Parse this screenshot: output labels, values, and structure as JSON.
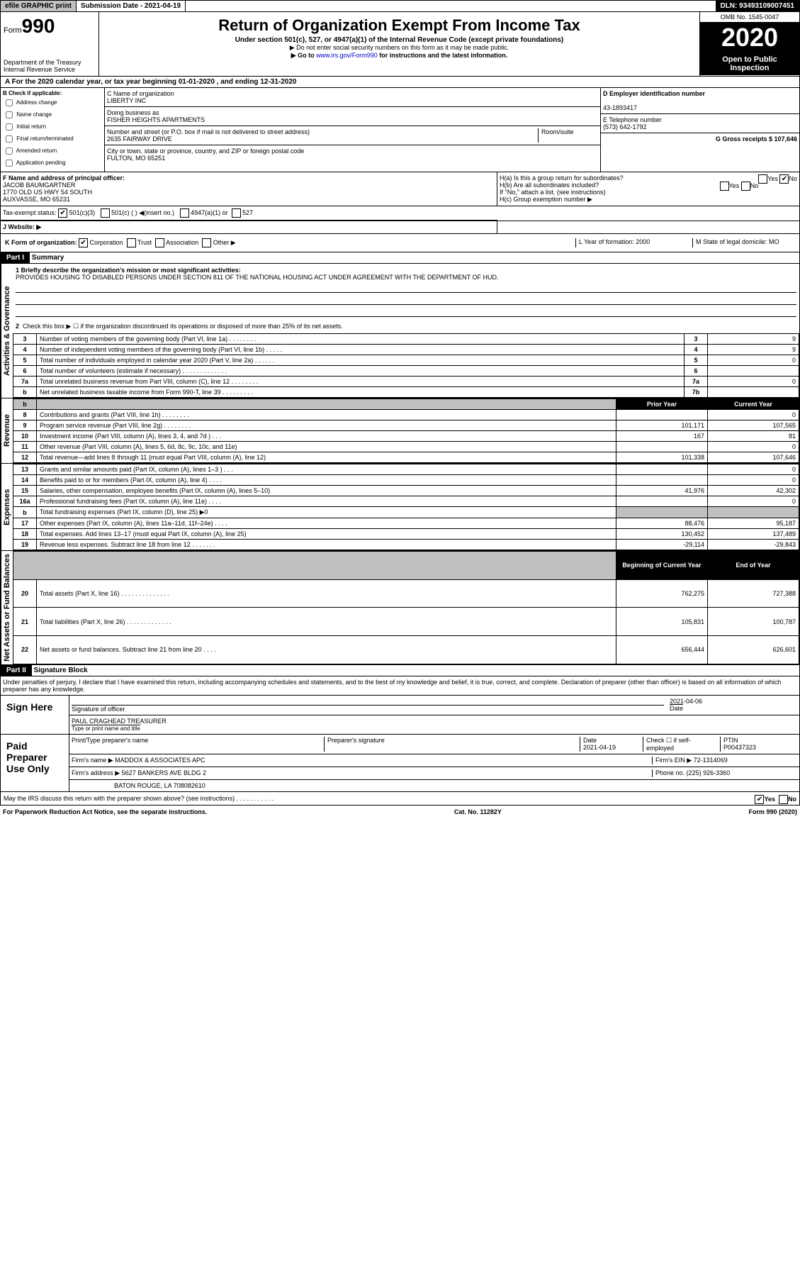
{
  "header": {
    "efile": "efile GRAPHIC print",
    "submission_label": "Submission Date - 2021-04-19",
    "dln": "DLN: 93493109007451"
  },
  "title_block": {
    "form_prefix": "Form",
    "form_number": "990",
    "dept1": "Department of the Treasury",
    "dept2": "Internal Revenue Service",
    "title": "Return of Organization Exempt From Income Tax",
    "subtitle": "Under section 501(c), 527, or 4947(a)(1) of the Internal Revenue Code (except private foundations)",
    "note1": "▶ Do not enter social security numbers on this form as it may be made public.",
    "note2_pre": "▶ Go to ",
    "note2_link": "www.irs.gov/Form990",
    "note2_post": " for instructions and the latest information.",
    "omb": "OMB No. 1545-0047",
    "year": "2020",
    "open": "Open to Public Inspection"
  },
  "period": "A For the 2020 calendar year, or tax year beginning 01-01-2020    , and ending 12-31-2020",
  "boxB": {
    "label": "B Check if applicable:",
    "addr": "Address change",
    "name": "Name change",
    "init": "Initial return",
    "final": "Final return/terminated",
    "amend": "Amended return",
    "app": "Application pending"
  },
  "boxC": {
    "name_label": "C Name of organization",
    "name": "LIBERTY INC",
    "dba_label": "Doing business as",
    "dba": "FISHER HEIGHTS APARTMENTS",
    "addr_label": "Number and street (or P.O. box if mail is not delivered to street address)",
    "room_label": "Room/suite",
    "addr": "2635 FAIRWAY DRIVE",
    "city_label": "City or town, state or province, country, and ZIP or foreign postal code",
    "city": "FULTON, MO  65251"
  },
  "boxD": {
    "ein_label": "D Employer identification number",
    "ein": "43-1893417",
    "phone_label": "E Telephone number",
    "phone": "(573) 642-1792",
    "gross_label": "G Gross receipts $ 107,646"
  },
  "boxF": {
    "label": "F  Name and address of principal officer:",
    "name": "JACOB BAUMGARTNER",
    "addr1": "1770 OLD US HWY 54 SOUTH",
    "addr2": "AUXVASSE, MO  65231"
  },
  "boxH": {
    "ha": "H(a)  Is this a group return for subordinates?",
    "hb": "H(b)  Are all subordinates included?",
    "yes": "Yes",
    "no": "No",
    "note": "If \"No,\" attach a list. (see instructions)",
    "hc": "H(c)  Group exemption number ▶"
  },
  "tax_exempt": {
    "label": "Tax-exempt status:",
    "c3": "501(c)(3)",
    "c": "501(c) (  ) ◀(insert no.)",
    "a1": "4947(a)(1) or",
    "s527": "527"
  },
  "website": "J    Website: ▶",
  "boxK": {
    "label": "K Form of organization:",
    "corp": "Corporation",
    "trust": "Trust",
    "assoc": "Association",
    "other": "Other ▶"
  },
  "boxL": "L Year of formation: 2000",
  "boxM": "M State of legal domicile: MO",
  "part1": {
    "hdr": "Part I",
    "title": "Summary",
    "q1": "1  Briefly describe the organization's mission or most significant activities:",
    "mission": "PROVIDES HOUSING TO DISABLED PERSONS UNDER SECTION 811 OF THE NATIONAL HOUSING ACT UNDER AGREEMENT WITH THE DEPARTMENT OF HUD.",
    "q2": "Check this box ▶ ☐  if the organization discontinued its operations or disposed of more than 25% of its net assets.",
    "side_gov": "Activities & Governance",
    "side_rev": "Revenue",
    "side_exp": "Expenses",
    "side_net": "Net Assets or Fund Balances"
  },
  "governance": {
    "rows": [
      {
        "n": "3",
        "t": "Number of voting members of the governing body (Part VI, line 1a)   .    .    .    .    .    .    .    .",
        "bn": "3",
        "v": "9"
      },
      {
        "n": "4",
        "t": "Number of independent voting members of the governing body (Part VI, line 1b)   .    .    .    .    .",
        "bn": "4",
        "v": "9"
      },
      {
        "n": "5",
        "t": "Total number of individuals employed in calendar year 2020 (Part V, line 2a)   .    .    .    .    .    .",
        "bn": "5",
        "v": "0"
      },
      {
        "n": "6",
        "t": "Total number of volunteers (estimate if necessary)    .    .    .    .    .    .    .    .    .    .    .    .    .",
        "bn": "6",
        "v": ""
      },
      {
        "n": "7a",
        "t": "Total unrelated business revenue from Part VIII, column (C), line 12   .    .    .    .    .    .    .    .",
        "bn": "7a",
        "v": "0"
      },
      {
        "n": "b",
        "t": "Net unrelated business taxable income from Form 990-T, line 39   .    .    .    .    .    .    .    .    .",
        "bn": "7b",
        "v": ""
      }
    ]
  },
  "fin_hdr": {
    "prior": "Prior Year",
    "current": "Current Year"
  },
  "revenue": [
    {
      "n": "8",
      "t": "Contributions and grants (Part VIII, line 1h)   .    .    .    .    .    .    .    .",
      "p": "",
      "c": "0"
    },
    {
      "n": "9",
      "t": "Program service revenue (Part VIII, line 2g)    .    .    .    .    .    .    .    .",
      "p": "101,171",
      "c": "107,565"
    },
    {
      "n": "10",
      "t": "Investment income (Part VIII, column (A), lines 3, 4, and 7d )   .    .    .",
      "p": "167",
      "c": "81"
    },
    {
      "n": "11",
      "t": "Other revenue (Part VIII, column (A), lines 5, 6d, 8c, 9c, 10c, and 11e)",
      "p": "",
      "c": "0"
    },
    {
      "n": "12",
      "t": "Total revenue—add lines 8 through 11 (must equal Part VIII, column (A), line 12)",
      "p": "101,338",
      "c": "107,646"
    }
  ],
  "expenses": [
    {
      "n": "13",
      "t": "Grants and similar amounts paid (Part IX, column (A), lines 1–3 )   .    .    .",
      "p": "",
      "c": "0"
    },
    {
      "n": "14",
      "t": "Benefits paid to or for members (Part IX, column (A), line 4)   .    .    .    .",
      "p": "",
      "c": "0"
    },
    {
      "n": "15",
      "t": "Salaries, other compensation, employee benefits (Part IX, column (A), lines 5–10)",
      "p": "41,976",
      "c": "42,302"
    },
    {
      "n": "16a",
      "t": "Professional fundraising fees (Part IX, column (A), line 11e)   .    .    .    .",
      "p": "",
      "c": "0"
    },
    {
      "n": "b",
      "t": "Total fundraising expenses (Part IX, column (D), line 25) ▶0",
      "p": "grey",
      "c": "grey"
    },
    {
      "n": "17",
      "t": "Other expenses (Part IX, column (A), lines 11a–11d, 11f–24e)   .    .    .    .",
      "p": "88,476",
      "c": "95,187"
    },
    {
      "n": "18",
      "t": "Total expenses. Add lines 13–17 (must equal Part IX, column (A), line 25)",
      "p": "130,452",
      "c": "137,489"
    },
    {
      "n": "19",
      "t": "Revenue less expenses. Subtract line 18 from line 12   .    .    .    .    .    .    .",
      "p": "-29,114",
      "c": "-29,843"
    }
  ],
  "net_hdr": {
    "beg": "Beginning of Current Year",
    "end": "End of Year"
  },
  "netassets": [
    {
      "n": "20",
      "t": "Total assets (Part X, line 16)   .    .    .    .    .    .    .    .    .    .    .    .    .    .",
      "p": "762,275",
      "c": "727,388"
    },
    {
      "n": "21",
      "t": "Total liabilities (Part X, line 26)   .    .    .    .    .    .    .    .    .    .    .    .    .",
      "p": "105,831",
      "c": "100,787"
    },
    {
      "n": "22",
      "t": "Net assets or fund balances. Subtract line 21 from line 20   .    .    .    .",
      "p": "656,444",
      "c": "626,601"
    }
  ],
  "part2": {
    "hdr": "Part II",
    "title": "Signature Block",
    "decl": "Under penalties of perjury, I declare that I have examined this return, including accompanying schedules and statements, and to the best of my knowledge and belief, it is true, correct, and complete. Declaration of preparer (other than officer) is based on all information of which preparer has any knowledge."
  },
  "sign": {
    "here": "Sign Here",
    "sig_officer": "Signature of officer",
    "date": "Date",
    "date_val": "2021-04-06",
    "name": "PAUL CRAGHEAD  TREASURER",
    "name_label": "Type or print name and title"
  },
  "preparer": {
    "label": "Paid Preparer Use Only",
    "print_label": "Print/Type preparer's name",
    "sig_label": "Preparer's signature",
    "date_label": "Date",
    "date": "2021-04-19",
    "check_label": "Check ☐ if self-employed",
    "ptin_label": "PTIN",
    "ptin": "P00437323",
    "firm_name_label": "Firm's name    ▶",
    "firm_name": "MADDOX & ASSOCIATES APC",
    "firm_ein_label": "Firm's EIN ▶",
    "firm_ein": "72-1314069",
    "firm_addr_label": "Firm's address ▶",
    "firm_addr1": "5627 BANKERS AVE BLDG 2",
    "firm_addr2": "BATON ROUGE, LA  708082610",
    "phone_label": "Phone no.",
    "phone": "(225) 926-3360"
  },
  "discuss": {
    "q": "May the IRS discuss this return with the preparer shown above? (see instructions)   .    .    .    .    .    .    .    .    .    .    .",
    "yes": "Yes",
    "no": "No"
  },
  "footer": {
    "left": "For Paperwork Reduction Act Notice, see the separate instructions.",
    "mid": "Cat. No. 11282Y",
    "right": "Form 990 (2020)"
  }
}
